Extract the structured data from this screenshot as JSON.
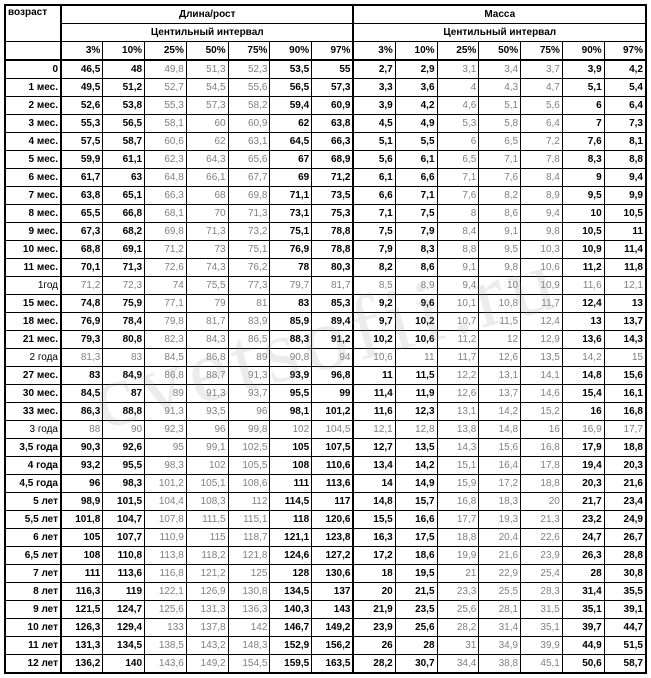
{
  "headers": {
    "age": "возраст",
    "length": "Длина/рост",
    "mass": "Масса",
    "centile": "Центильный интервал",
    "percents": [
      "3%",
      "10%",
      "25%",
      "50%",
      "75%",
      "90%",
      "97%"
    ]
  },
  "watermark": "cvetsofii.ru",
  "boldAges": [
    "0",
    "1 мес.",
    "2 мес.",
    "3 мес.",
    "4 мес.",
    "5 мес.",
    "6 мес.",
    "7 мес.",
    "8 мес.",
    "9 мес.",
    "10 мес.",
    "11 мес.",
    "15 мес.",
    "18 мес.",
    "21 мес.",
    "27 мес.",
    "30 мес.",
    "33 мес.",
    "3,5 года",
    "4 года",
    "4,5 года",
    "5 лет",
    "5,5 лет",
    "6 лет",
    "6,5 лет",
    "7 лет",
    "8 лет",
    "9 лет",
    "10 лет",
    "11 лет",
    "12 лет"
  ],
  "rows": [
    {
      "age": "0",
      "l": [
        "46,5",
        "48",
        "49,8",
        "51,3",
        "52,3",
        "53,5",
        "55"
      ],
      "m": [
        "2,7",
        "2,9",
        "3,1",
        "3,4",
        "3,7",
        "3,9",
        "4,2"
      ]
    },
    {
      "age": "1 мес.",
      "l": [
        "49,5",
        "51,2",
        "52,7",
        "54,5",
        "55,6",
        "56,5",
        "57,3"
      ],
      "m": [
        "3,3",
        "3,6",
        "4",
        "4,3",
        "4,7",
        "5,1",
        "5,4"
      ]
    },
    {
      "age": "2 мес.",
      "l": [
        "52,6",
        "53,8",
        "55,3",
        "57,3",
        "58,2",
        "59,4",
        "60,9"
      ],
      "m": [
        "3,9",
        "4,2",
        "4,6",
        "5,1",
        "5,6",
        "6",
        "6,4"
      ]
    },
    {
      "age": "3 мес.",
      "l": [
        "55,3",
        "56,5",
        "58,1",
        "60",
        "60,9",
        "62",
        "63,8"
      ],
      "m": [
        "4,5",
        "4,9",
        "5,3",
        "5,8",
        "6,4",
        "7",
        "7,3"
      ]
    },
    {
      "age": "4 мес.",
      "l": [
        "57,5",
        "58,7",
        "60,6",
        "62",
        "63,1",
        "64,5",
        "66,3"
      ],
      "m": [
        "5,1",
        "5,5",
        "6",
        "6,5",
        "7,2",
        "7,6",
        "8,1"
      ]
    },
    {
      "age": "5 мес.",
      "l": [
        "59,9",
        "61,1",
        "62,3",
        "64,3",
        "65,6",
        "67",
        "68,9"
      ],
      "m": [
        "5,6",
        "6,1",
        "6,5",
        "7,1",
        "7,8",
        "8,3",
        "8,8"
      ]
    },
    {
      "age": "6 мес.",
      "l": [
        "61,7",
        "63",
        "64,8",
        "66,1",
        "67,7",
        "69",
        "71,2"
      ],
      "m": [
        "6,1",
        "6,6",
        "7,1",
        "7,6",
        "8,4",
        "9",
        "9,4"
      ]
    },
    {
      "age": "7 мес.",
      "l": [
        "63,8",
        "65,1",
        "66,3",
        "68",
        "69,8",
        "71,1",
        "73,5"
      ],
      "m": [
        "6,6",
        "7,1",
        "7,6",
        "8,2",
        "8,9",
        "9,5",
        "9,9"
      ]
    },
    {
      "age": "8 мес.",
      "l": [
        "65,5",
        "66,8",
        "68,1",
        "70",
        "71,3",
        "73,1",
        "75,3"
      ],
      "m": [
        "7,1",
        "7,5",
        "8",
        "8,6",
        "9,4",
        "10",
        "10,5"
      ]
    },
    {
      "age": "9 мес.",
      "l": [
        "67,3",
        "68,2",
        "69,8",
        "71,3",
        "73,2",
        "75,1",
        "78,8"
      ],
      "m": [
        "7,5",
        "7,9",
        "8,4",
        "9,1",
        "9,8",
        "10,5",
        "11"
      ]
    },
    {
      "age": "10 мес.",
      "l": [
        "68,8",
        "69,1",
        "71,2",
        "73",
        "75,1",
        "76,9",
        "78,8"
      ],
      "m": [
        "7,9",
        "8,3",
        "8,8",
        "9,5",
        "10,3",
        "10,9",
        "11,4"
      ]
    },
    {
      "age": "11 мес.",
      "l": [
        "70,1",
        "71,3",
        "72,6",
        "74,3",
        "76,2",
        "78",
        "80,3"
      ],
      "m": [
        "8,2",
        "8,6",
        "9,1",
        "9,8",
        "10,6",
        "11,2",
        "11,8"
      ]
    },
    {
      "age": "1год",
      "l": [
        "71,2",
        "72,3",
        "74",
        "75,5",
        "77,3",
        "79,7",
        "81,7"
      ],
      "m": [
        "8,5",
        "8,9",
        "9,4",
        "10",
        "10,9",
        "11,6",
        "12,1"
      ]
    },
    {
      "age": "15 мес.",
      "l": [
        "74,8",
        "75,9",
        "77,1",
        "79",
        "81",
        "83",
        "85,3"
      ],
      "m": [
        "9,2",
        "9,6",
        "10,1",
        "10,8",
        "11,7",
        "12,4",
        "13"
      ]
    },
    {
      "age": "18 мес.",
      "l": [
        "76,9",
        "78,4",
        "79,8",
        "81,7",
        "83,9",
        "85,9",
        "89,4"
      ],
      "m": [
        "9,7",
        "10,2",
        "10,7",
        "11,5",
        "12,4",
        "13",
        "13,7"
      ]
    },
    {
      "age": "21 мес.",
      "l": [
        "79,3",
        "80,8",
        "82,3",
        "84,3",
        "86,5",
        "88,3",
        "91,2"
      ],
      "m": [
        "10,2",
        "10,6",
        "11,2",
        "12",
        "12,9",
        "13,6",
        "14,3"
      ]
    },
    {
      "age": "2 года",
      "l": [
        "81,3",
        "83",
        "84,5",
        "86,8",
        "89",
        "90,8",
        "94"
      ],
      "m": [
        "10,6",
        "11",
        "11,7",
        "12,6",
        "13,5",
        "14,2",
        "15"
      ]
    },
    {
      "age": "27 мес.",
      "l": [
        "83",
        "84,9",
        "86,8",
        "88,7",
        "91,3",
        "93,9",
        "96,8"
      ],
      "m": [
        "11",
        "11,5",
        "12,2",
        "13,1",
        "14,1",
        "14,8",
        "15,6"
      ]
    },
    {
      "age": "30 мес.",
      "l": [
        "84,5",
        "87",
        "89",
        "91,3",
        "93,7",
        "95,5",
        "99"
      ],
      "m": [
        "11,4",
        "11,9",
        "12,6",
        "13,7",
        "14,6",
        "15,4",
        "16,1"
      ]
    },
    {
      "age": "33 мес.",
      "l": [
        "86,3",
        "88,8",
        "91,3",
        "93,5",
        "96",
        "98,1",
        "101,2"
      ],
      "m": [
        "11,6",
        "12,3",
        "13,1",
        "14,2",
        "15,2",
        "16",
        "16,8"
      ]
    },
    {
      "age": "3 года",
      "l": [
        "88",
        "90",
        "92,3",
        "96",
        "99,8",
        "102",
        "104,5"
      ],
      "m": [
        "12,1",
        "12,8",
        "13,8",
        "14,8",
        "16",
        "16,9",
        "17,7"
      ]
    },
    {
      "age": "3,5 года",
      "l": [
        "90,3",
        "92,6",
        "95",
        "99,1",
        "102,5",
        "105",
        "107,5"
      ],
      "m": [
        "12,7",
        "13,5",
        "14,3",
        "15,6",
        "16,8",
        "17,9",
        "18,8"
      ]
    },
    {
      "age": "4 года",
      "l": [
        "93,2",
        "95,5",
        "98,3",
        "102",
        "105,5",
        "108",
        "110,6"
      ],
      "m": [
        "13,4",
        "14,2",
        "15,1",
        "16,4",
        "17,8",
        "19,4",
        "20,3"
      ]
    },
    {
      "age": "4,5 года",
      "l": [
        "96",
        "98,3",
        "101,2",
        "105,1",
        "108,6",
        "111",
        "113,6"
      ],
      "m": [
        "14",
        "14,9",
        "15,9",
        "17,2",
        "18,8",
        "20,3",
        "21,6"
      ]
    },
    {
      "age": "5 лет",
      "l": [
        "98,9",
        "101,5",
        "104,4",
        "108,3",
        "112",
        "114,5",
        "117"
      ],
      "m": [
        "14,8",
        "15,7",
        "16,8",
        "18,3",
        "20",
        "21,7",
        "23,4"
      ]
    },
    {
      "age": "5,5 лет",
      "l": [
        "101,8",
        "104,7",
        "107,8",
        "111,5",
        "115,1",
        "118",
        "120,6"
      ],
      "m": [
        "15,5",
        "16,6",
        "17,7",
        "19,3",
        "21,3",
        "23,2",
        "24,9"
      ]
    },
    {
      "age": "6 лет",
      "l": [
        "105",
        "107,7",
        "110,9",
        "115",
        "118,7",
        "121,1",
        "123,8"
      ],
      "m": [
        "16,3",
        "17,5",
        "18,8",
        "20,4",
        "22,6",
        "24,7",
        "26,7"
      ]
    },
    {
      "age": "6,5 лет",
      "l": [
        "108",
        "110,8",
        "113,8",
        "118,2",
        "121,8",
        "124,6",
        "127,2"
      ],
      "m": [
        "17,2",
        "18,6",
        "19,9",
        "21,6",
        "23,9",
        "26,3",
        "28,8"
      ]
    },
    {
      "age": "7 лет",
      "l": [
        "111",
        "113,6",
        "116,8",
        "121,2",
        "125",
        "128",
        "130,6"
      ],
      "m": [
        "18",
        "19,5",
        "21",
        "22,9",
        "25,4",
        "28",
        "30,8"
      ]
    },
    {
      "age": "8 лет",
      "l": [
        "116,3",
        "119",
        "122,1",
        "126,9",
        "130,8",
        "134,5",
        "137"
      ],
      "m": [
        "20",
        "21,5",
        "23,3",
        "25,5",
        "28,3",
        "31,4",
        "35,5"
      ]
    },
    {
      "age": "9 лет",
      "l": [
        "121,5",
        "124,7",
        "125,6",
        "131,3",
        "136,3",
        "140,3",
        "143"
      ],
      "m": [
        "21,9",
        "23,5",
        "25,6",
        "28,1",
        "31,5",
        "35,1",
        "39,1"
      ]
    },
    {
      "age": "10 лет",
      "l": [
        "126,3",
        "129,4",
        "133",
        "137,8",
        "142",
        "146,7",
        "149,2"
      ],
      "m": [
        "23,9",
        "25,6",
        "28,2",
        "31,4",
        "35,1",
        "39,7",
        "44,7"
      ]
    },
    {
      "age": "11 лет",
      "l": [
        "131,3",
        "134,5",
        "138,5",
        "143,2",
        "148,3",
        "152,9",
        "156,2"
      ],
      "m": [
        "26",
        "28",
        "31",
        "34,9",
        "39,9",
        "44,9",
        "51,5"
      ]
    },
    {
      "age": "12 лет",
      "l": [
        "136,2",
        "140",
        "143,6",
        "149,2",
        "154,5",
        "159,5",
        "163,5"
      ],
      "m": [
        "28,2",
        "30,7",
        "34,4",
        "38,8",
        "45,1",
        "50,6",
        "58,7"
      ]
    }
  ]
}
